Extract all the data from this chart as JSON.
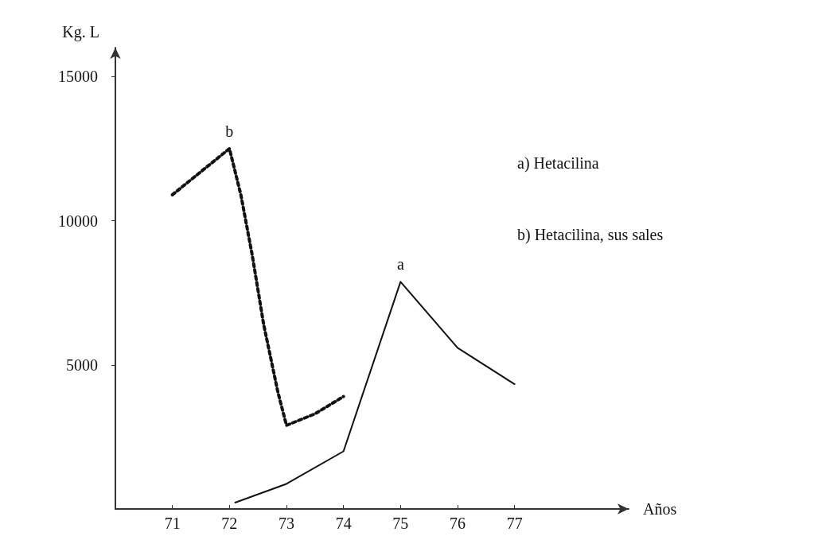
{
  "chart_data": {
    "type": "line",
    "xlabel": "Años",
    "ylabel": "Kg. L",
    "xlim": [
      70,
      79
    ],
    "xticks": [
      71,
      72,
      73,
      74,
      75,
      76,
      77
    ],
    "ylim": [
      0,
      16000
    ],
    "yticks": [
      5000,
      10000,
      15000
    ],
    "grid": false,
    "marker": "none",
    "series": [
      {
        "color": "#111111",
        "line_style": "dotted",
        "x": [
          71,
          71.5,
          72,
          72.2,
          72.4,
          72.6,
          72.85,
          73,
          73.5,
          74
        ],
        "values": [
          10900,
          11700,
          12500,
          10900,
          8800,
          6400,
          4050,
          2900,
          3300,
          3900
        ]
      },
      {
        "color": "#111111",
        "line_style": "solid",
        "x": [
          72.1,
          73,
          74,
          75,
          76,
          77
        ],
        "values": [
          220,
          870,
          2000,
          7880,
          5590,
          4330
        ]
      }
    ],
    "annotations": [
      {
        "text": "b",
        "x": 72,
        "y": 12500
      },
      {
        "text": "a",
        "x": 75,
        "y": 7880
      },
      "a) Hetacilina",
      "b) Hetacilina, sus sales"
    ]
  }
}
